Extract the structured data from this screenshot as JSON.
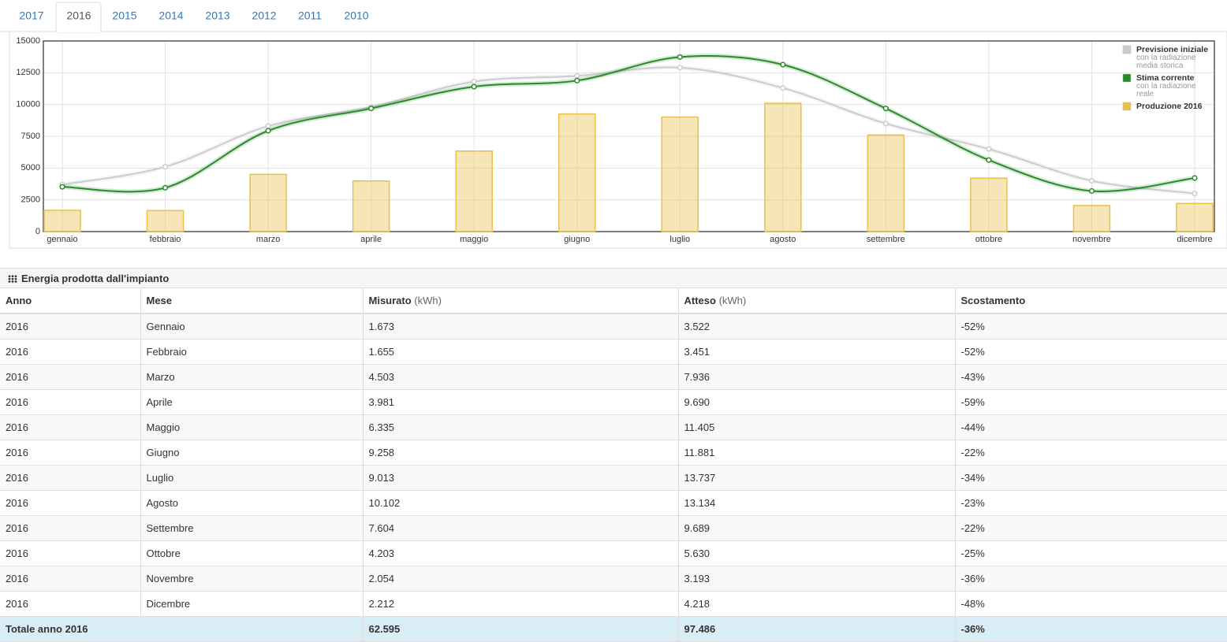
{
  "tabs": [
    "2017",
    "2016",
    "2015",
    "2014",
    "2013",
    "2012",
    "2011",
    "2010"
  ],
  "active_tab": "2016",
  "chart_data": {
    "type": "combo",
    "categories": [
      "gennaio",
      "febbraio",
      "marzo",
      "aprile",
      "maggio",
      "giugno",
      "luglio",
      "agosto",
      "settembre",
      "ottobre",
      "novembre",
      "dicembre"
    ],
    "ylim": [
      0,
      15000
    ],
    "yticks": [
      0,
      2500,
      5000,
      7500,
      10000,
      12500,
      15000
    ],
    "grid": true,
    "legend": "top-right",
    "series": [
      {
        "name": "Previsione iniziale",
        "note": "con la radiazione media storica",
        "type": "line",
        "color": "#cccccc",
        "values": [
          3700,
          5100,
          8300,
          9800,
          11800,
          12250,
          12900,
          11300,
          8500,
          6500,
          4000,
          3000
        ]
      },
      {
        "name": "Stima corrente",
        "note": "con la radiazione reale",
        "type": "line",
        "color": "#2a8a2a",
        "values": [
          3522,
          3451,
          7936,
          9690,
          11405,
          11881,
          13737,
          13134,
          9689,
          5630,
          3193,
          4218
        ]
      },
      {
        "name": "Produzione 2016",
        "type": "bar",
        "color": "#e8c04a",
        "values": [
          1673,
          1655,
          4503,
          3981,
          6335,
          9258,
          9013,
          10102,
          7604,
          4203,
          2054,
          2212
        ]
      }
    ]
  },
  "table": {
    "title": "Energia prodotta dall'impianto",
    "header": [
      {
        "label": "Anno"
      },
      {
        "label": "Mese"
      },
      {
        "label": "Misurato",
        "unit": "(kWh)"
      },
      {
        "label": "Atteso",
        "unit": "(kWh)"
      },
      {
        "label": "Scostamento"
      }
    ],
    "rows": [
      [
        "2016",
        "Gennaio",
        "1.673",
        "3.522",
        "-52%"
      ],
      [
        "2016",
        "Febbraio",
        "1.655",
        "3.451",
        "-52%"
      ],
      [
        "2016",
        "Marzo",
        "4.503",
        "7.936",
        "-43%"
      ],
      [
        "2016",
        "Aprile",
        "3.981",
        "9.690",
        "-59%"
      ],
      [
        "2016",
        "Maggio",
        "6.335",
        "11.405",
        "-44%"
      ],
      [
        "2016",
        "Giugno",
        "9.258",
        "11.881",
        "-22%"
      ],
      [
        "2016",
        "Luglio",
        "9.013",
        "13.737",
        "-34%"
      ],
      [
        "2016",
        "Agosto",
        "10.102",
        "13.134",
        "-23%"
      ],
      [
        "2016",
        "Settembre",
        "7.604",
        "9.689",
        "-22%"
      ],
      [
        "2016",
        "Ottobre",
        "4.203",
        "5.630",
        "-25%"
      ],
      [
        "2016",
        "Novembre",
        "2.054",
        "3.193",
        "-36%"
      ],
      [
        "2016",
        "Dicembre",
        "2.212",
        "4.218",
        "-48%"
      ]
    ],
    "footer": [
      "Totale anno 2016",
      "62.595",
      "97.486",
      "-36%"
    ]
  }
}
